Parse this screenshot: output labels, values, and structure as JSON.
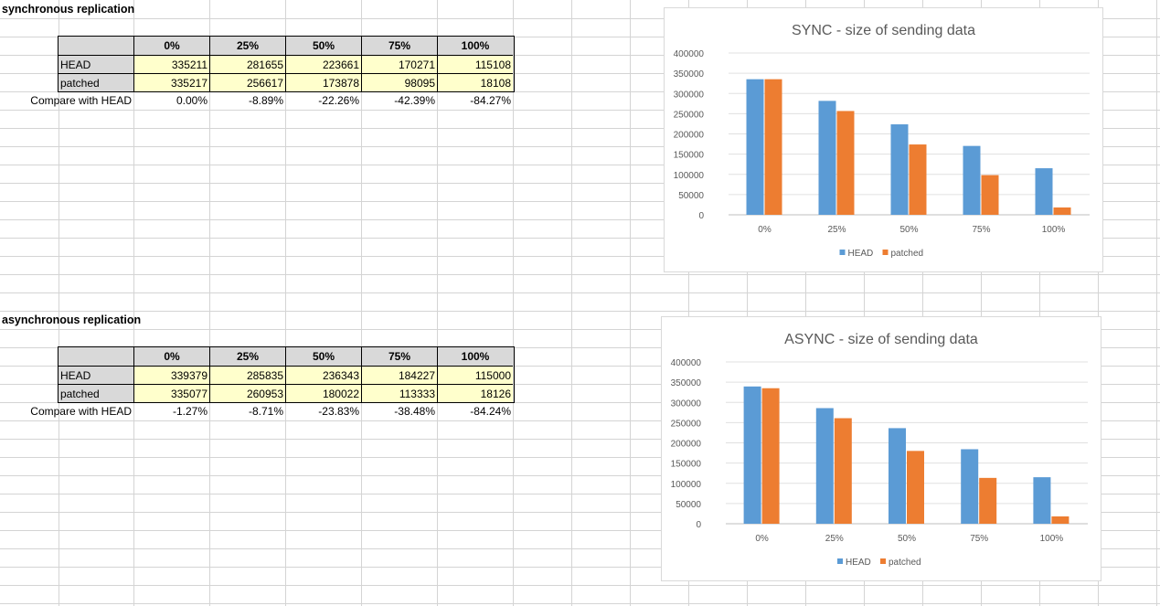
{
  "sync": {
    "title": "synchronous replication",
    "columns": [
      "0%",
      "25%",
      "50%",
      "75%",
      "100%"
    ],
    "rows": [
      {
        "label": "HEAD",
        "values": [
          "335211",
          "281655",
          "223661",
          "170271",
          "115108"
        ]
      },
      {
        "label": "patched",
        "values": [
          "335217",
          "256617",
          "173878",
          "98095",
          "18108"
        ]
      }
    ],
    "compare_label": "Compare with HEAD",
    "compare": [
      "0.00%",
      "-8.89%",
      "-22.26%",
      "-42.39%",
      "-84.27%"
    ]
  },
  "async": {
    "title": "asynchronous replication",
    "columns": [
      "0%",
      "25%",
      "50%",
      "75%",
      "100%"
    ],
    "rows": [
      {
        "label": "HEAD",
        "values": [
          "339379",
          "285835",
          "236343",
          "184227",
          "115000"
        ]
      },
      {
        "label": "patched",
        "values": [
          "335077",
          "260953",
          "180022",
          "113333",
          "18126"
        ]
      }
    ],
    "compare_label": "Compare with HEAD",
    "compare": [
      "-1.27%",
      "-8.71%",
      "-23.83%",
      "-38.48%",
      "-84.24%"
    ]
  },
  "chart_data": [
    {
      "type": "bar",
      "title": "SYNC - size of sending data",
      "categories": [
        "0%",
        "25%",
        "50%",
        "75%",
        "100%"
      ],
      "series": [
        {
          "name": "HEAD",
          "color": "#5b9bd5",
          "values": [
            335211,
            281655,
            223661,
            170271,
            115108
          ]
        },
        {
          "name": "patched",
          "color": "#ed7d31",
          "values": [
            335217,
            256617,
            173878,
            98095,
            18108
          ]
        }
      ],
      "ylim": [
        0,
        400000
      ],
      "yticks": [
        "0",
        "50000",
        "100000",
        "150000",
        "200000",
        "250000",
        "300000",
        "350000",
        "400000"
      ],
      "legend": "bottom",
      "grid": true
    },
    {
      "type": "bar",
      "title": "ASYNC - size of sending data",
      "categories": [
        "0%",
        "25%",
        "50%",
        "75%",
        "100%"
      ],
      "series": [
        {
          "name": "HEAD",
          "color": "#5b9bd5",
          "values": [
            339379,
            285835,
            236343,
            184227,
            115000
          ]
        },
        {
          "name": "patched",
          "color": "#ed7d31",
          "values": [
            335077,
            260953,
            180022,
            113333,
            18126
          ]
        }
      ],
      "ylim": [
        0,
        400000
      ],
      "yticks": [
        "0",
        "50000",
        "100000",
        "150000",
        "200000",
        "250000",
        "300000",
        "350000",
        "400000"
      ],
      "legend": "bottom",
      "grid": true
    }
  ]
}
